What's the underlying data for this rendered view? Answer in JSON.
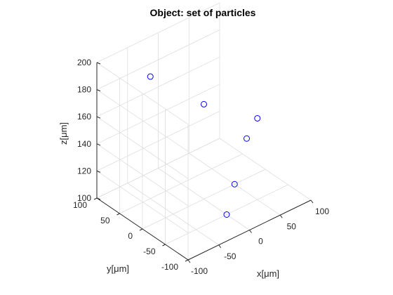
{
  "chart_data": {
    "type": "scatter",
    "projection": "3d",
    "title": "Object: set of particles",
    "xlabel": "x[μm]",
    "ylabel": "y[μm]",
    "zlabel": "z[μm]",
    "xlim": [
      -100,
      100
    ],
    "ylim": [
      -100,
      100
    ],
    "zlim": [
      100,
      200
    ],
    "xticks": [
      -100,
      -50,
      0,
      50,
      100
    ],
    "yticks": [
      -100,
      -50,
      0,
      50,
      100
    ],
    "zticks": [
      100,
      120,
      140,
      160,
      180,
      200
    ],
    "xtick_labels": [
      "-100",
      "-50",
      "0",
      "50",
      "100"
    ],
    "ytick_labels": [
      "-100",
      "-50",
      "0",
      "50",
      "100"
    ],
    "ztick_labels": [
      "100",
      "120",
      "140",
      "160",
      "180",
      "200"
    ],
    "grid": true,
    "marker": "o",
    "marker_color": "#0000ff",
    "points": [
      {
        "x": -50,
        "y": 50,
        "z": 190
      },
      {
        "x": 0,
        "y": 0,
        "z": 170
      },
      {
        "x": 40,
        "y": -40,
        "z": 145
      },
      {
        "x": 50,
        "y": -50,
        "z": 160
      },
      {
        "x": 0,
        "y": -50,
        "z": 100
      },
      {
        "x": 50,
        "y": 0,
        "z": 100
      }
    ]
  }
}
